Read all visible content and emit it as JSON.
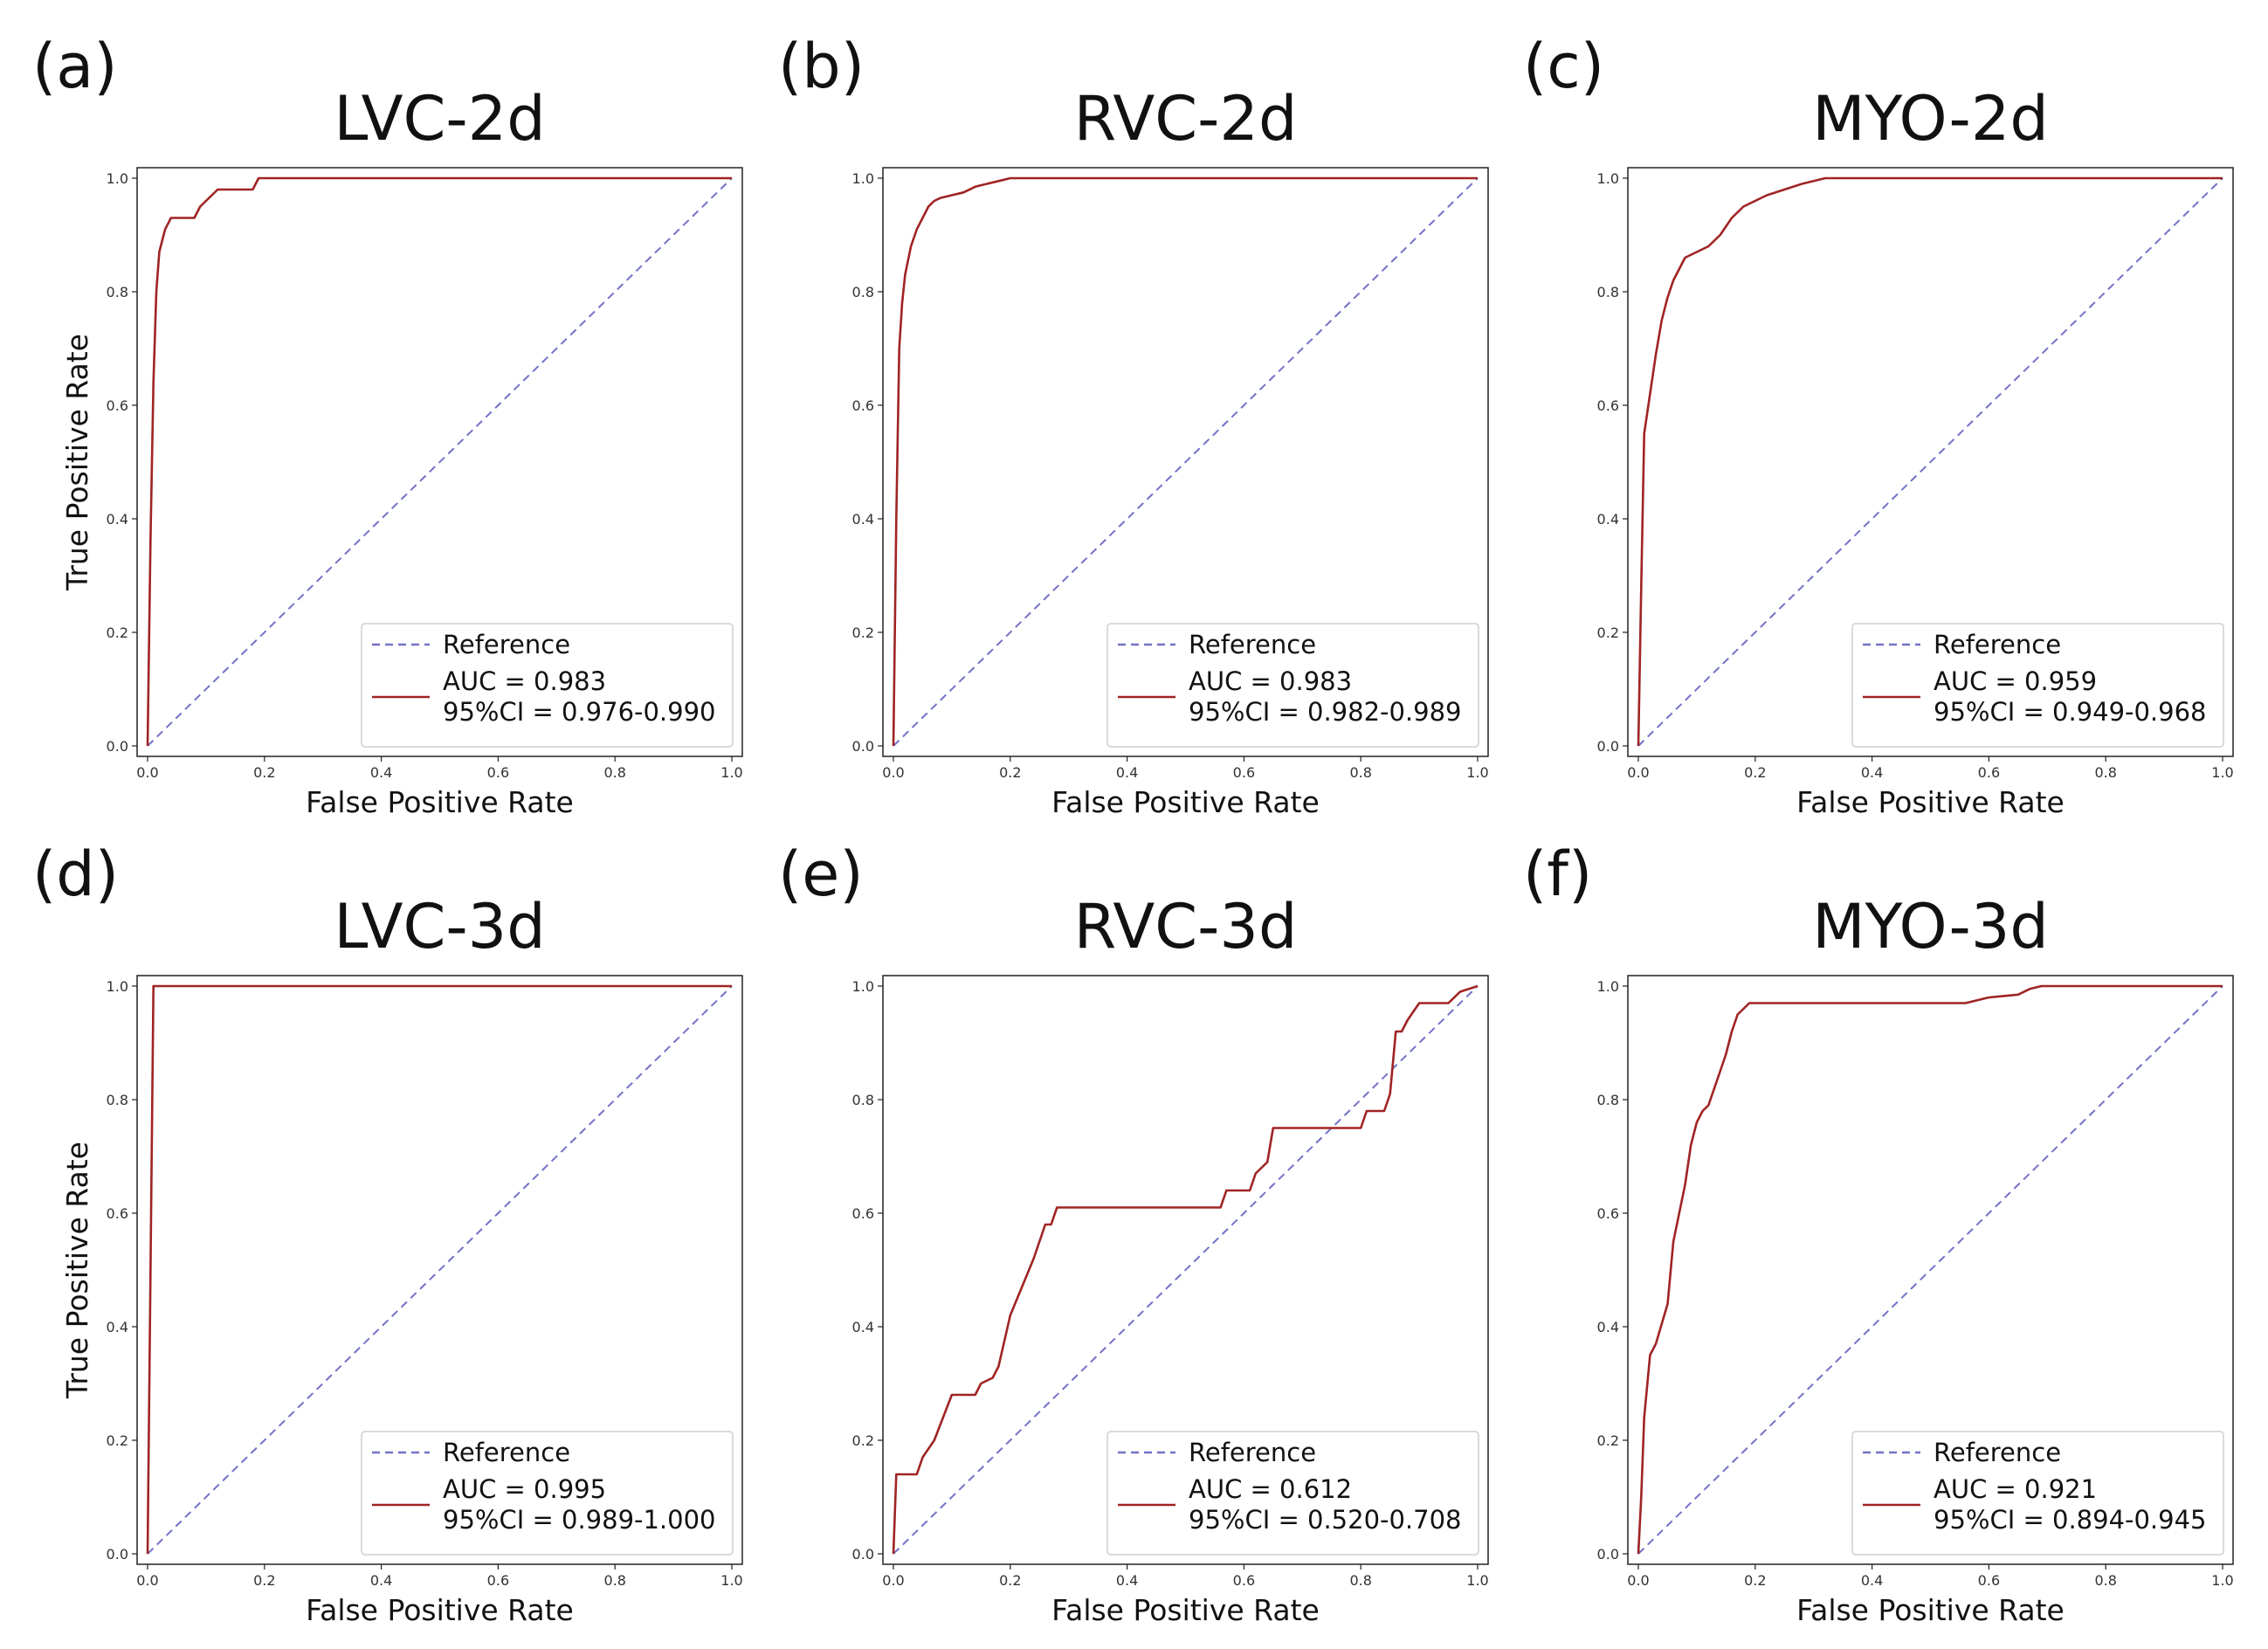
{
  "chart_data": [
    {
      "panel_label": "(a)",
      "type": "line",
      "title": "LVC-2d",
      "xlabel": "False Positive Rate",
      "ylabel": "True Positive Rate",
      "xlim": [
        0,
        1
      ],
      "ylim": [
        0,
        1
      ],
      "xticks": [
        "0.0",
        "0.2",
        "0.4",
        "0.6",
        "0.8",
        "1.0"
      ],
      "yticks": [
        "0.0",
        "0.2",
        "0.4",
        "0.6",
        "0.8",
        "1.0"
      ],
      "legend": {
        "location": "lower right",
        "reference_label": "Reference",
        "auc_label": "AUC = 0.983",
        "ci_label": "95%CI = 0.976-0.990"
      },
      "colors": {
        "roc": "#a02424",
        "reference": "#7272c8"
      },
      "series": [
        {
          "name": "Reference",
          "style": "dashed",
          "x": [
            0,
            1
          ],
          "y": [
            0,
            1
          ]
        },
        {
          "name": "ROC",
          "style": "solid",
          "x": [
            0,
            0.005,
            0.01,
            0.015,
            0.02,
            0.03,
            0.04,
            0.06,
            0.08,
            0.09,
            0.1,
            0.12,
            0.13,
            0.18,
            0.19,
            1.0
          ],
          "y": [
            0,
            0.36,
            0.64,
            0.8,
            0.87,
            0.91,
            0.93,
            0.93,
            0.93,
            0.95,
            0.96,
            0.98,
            0.98,
            0.98,
            1.0,
            1.0
          ]
        }
      ]
    },
    {
      "panel_label": "(b)",
      "type": "line",
      "title": "RVC-2d",
      "xlabel": "False Positive Rate",
      "ylabel": "",
      "xlim": [
        0,
        1
      ],
      "ylim": [
        0,
        1
      ],
      "xticks": [
        "0.0",
        "0.2",
        "0.4",
        "0.6",
        "0.8",
        "1.0"
      ],
      "yticks": [
        "0.0",
        "0.2",
        "0.4",
        "0.6",
        "0.8",
        "1.0"
      ],
      "legend": {
        "location": "lower right",
        "reference_label": "Reference",
        "auc_label": "AUC = 0.983",
        "ci_label": "95%CI = 0.982-0.989"
      },
      "colors": {
        "roc": "#a02424",
        "reference": "#7272c8"
      },
      "series": [
        {
          "name": "Reference",
          "style": "dashed",
          "x": [
            0,
            1
          ],
          "y": [
            0,
            1
          ]
        },
        {
          "name": "ROC",
          "style": "solid",
          "x": [
            0,
            0.005,
            0.01,
            0.015,
            0.02,
            0.03,
            0.04,
            0.05,
            0.06,
            0.07,
            0.08,
            0.1,
            0.12,
            0.14,
            0.16,
            0.18,
            0.2,
            1.0
          ],
          "y": [
            0,
            0.4,
            0.7,
            0.78,
            0.83,
            0.88,
            0.91,
            0.93,
            0.95,
            0.96,
            0.965,
            0.97,
            0.975,
            0.985,
            0.99,
            0.995,
            1.0,
            1.0
          ]
        }
      ]
    },
    {
      "panel_label": "(c)",
      "type": "line",
      "title": "MYO-2d",
      "xlabel": "False Positive Rate",
      "ylabel": "",
      "xlim": [
        0,
        1
      ],
      "ylim": [
        0,
        1
      ],
      "xticks": [
        "0.0",
        "0.2",
        "0.4",
        "0.6",
        "0.8",
        "1.0"
      ],
      "yticks": [
        "0.0",
        "0.2",
        "0.4",
        "0.6",
        "0.8",
        "1.0"
      ],
      "legend": {
        "location": "lower right",
        "reference_label": "Reference",
        "auc_label": "AUC = 0.959",
        "ci_label": "95%CI = 0.949-0.968"
      },
      "colors": {
        "roc": "#a02424",
        "reference": "#7272c8"
      },
      "series": [
        {
          "name": "Reference",
          "style": "dashed",
          "x": [
            0,
            1
          ],
          "y": [
            0,
            1
          ]
        },
        {
          "name": "ROC",
          "style": "solid",
          "x": [
            0,
            0.005,
            0.01,
            0.02,
            0.03,
            0.04,
            0.05,
            0.06,
            0.07,
            0.08,
            0.1,
            0.12,
            0.14,
            0.16,
            0.18,
            0.2,
            0.22,
            0.25,
            0.28,
            0.32,
            1.0
          ],
          "y": [
            0,
            0.28,
            0.55,
            0.62,
            0.69,
            0.75,
            0.79,
            0.82,
            0.84,
            0.86,
            0.87,
            0.88,
            0.9,
            0.93,
            0.95,
            0.96,
            0.97,
            0.98,
            0.99,
            1.0,
            1.0
          ]
        }
      ]
    },
    {
      "panel_label": "(d)",
      "type": "line",
      "title": "LVC-3d",
      "xlabel": "False Positive Rate",
      "ylabel": "True Positive Rate",
      "xlim": [
        0,
        1
      ],
      "ylim": [
        0,
        1
      ],
      "xticks": [
        "0.0",
        "0.2",
        "0.4",
        "0.6",
        "0.8",
        "1.0"
      ],
      "yticks": [
        "0.0",
        "0.2",
        "0.4",
        "0.6",
        "0.8",
        "1.0"
      ],
      "legend": {
        "location": "lower right",
        "reference_label": "Reference",
        "auc_label": "AUC = 0.995",
        "ci_label": "95%CI = 0.989-1.000"
      },
      "colors": {
        "roc": "#a02424",
        "reference": "#7272c8"
      },
      "series": [
        {
          "name": "Reference",
          "style": "dashed",
          "x": [
            0,
            1
          ],
          "y": [
            0,
            1
          ]
        },
        {
          "name": "ROC",
          "style": "solid",
          "x": [
            0,
            0.01,
            0.015,
            1.0
          ],
          "y": [
            0,
            1.0,
            1.0,
            1.0
          ]
        }
      ]
    },
    {
      "panel_label": "(e)",
      "type": "line",
      "title": "RVC-3d",
      "xlabel": "False Positive Rate",
      "ylabel": "",
      "xlim": [
        0,
        1
      ],
      "ylim": [
        0,
        1
      ],
      "xticks": [
        "0.0",
        "0.2",
        "0.4",
        "0.6",
        "0.8",
        "1.0"
      ],
      "yticks": [
        "0.0",
        "0.2",
        "0.4",
        "0.6",
        "0.8",
        "1.0"
      ],
      "legend": {
        "location": "lower right",
        "reference_label": "Reference",
        "auc_label": "AUC = 0.612",
        "ci_label": "95%CI = 0.520-0.708"
      },
      "colors": {
        "roc": "#a02424",
        "reference": "#7272c8"
      },
      "series": [
        {
          "name": "Reference",
          "style": "dashed",
          "x": [
            0,
            1
          ],
          "y": [
            0,
            1
          ]
        },
        {
          "name": "ROC",
          "style": "solid",
          "x": [
            0,
            0.005,
            0.04,
            0.05,
            0.07,
            0.1,
            0.14,
            0.15,
            0.17,
            0.18,
            0.2,
            0.22,
            0.24,
            0.26,
            0.27,
            0.28,
            0.3,
            0.56,
            0.57,
            0.61,
            0.62,
            0.64,
            0.65,
            0.8,
            0.81,
            0.84,
            0.85,
            0.86,
            0.87,
            0.88,
            0.9,
            0.95,
            0.97,
            1.0
          ],
          "y": [
            0,
            0.14,
            0.14,
            0.17,
            0.2,
            0.28,
            0.28,
            0.3,
            0.31,
            0.33,
            0.42,
            0.47,
            0.52,
            0.58,
            0.58,
            0.61,
            0.61,
            0.61,
            0.64,
            0.64,
            0.67,
            0.69,
            0.75,
            0.75,
            0.78,
            0.78,
            0.81,
            0.92,
            0.92,
            0.94,
            0.97,
            0.97,
            0.99,
            1.0
          ]
        }
      ]
    },
    {
      "panel_label": "(f)",
      "type": "line",
      "title": "MYO-3d",
      "xlabel": "False Positive Rate",
      "ylabel": "",
      "xlim": [
        0,
        1
      ],
      "ylim": [
        0,
        1
      ],
      "xticks": [
        "0.0",
        "0.2",
        "0.4",
        "0.6",
        "0.8",
        "1.0"
      ],
      "yticks": [
        "0.0",
        "0.2",
        "0.4",
        "0.6",
        "0.8",
        "1.0"
      ],
      "legend": {
        "location": "lower right",
        "reference_label": "Reference",
        "auc_label": "AUC = 0.921",
        "ci_label": "95%CI = 0.894-0.945"
      },
      "colors": {
        "roc": "#a02424",
        "reference": "#7272c8"
      },
      "series": [
        {
          "name": "Reference",
          "style": "dashed",
          "x": [
            0,
            1
          ],
          "y": [
            0,
            1
          ]
        },
        {
          "name": "ROC",
          "style": "solid",
          "x": [
            0,
            0.005,
            0.01,
            0.02,
            0.03,
            0.05,
            0.06,
            0.07,
            0.08,
            0.09,
            0.1,
            0.11,
            0.12,
            0.13,
            0.14,
            0.15,
            0.16,
            0.17,
            0.18,
            0.19,
            0.2,
            0.56,
            0.6,
            0.65,
            0.67,
            0.69,
            1.0
          ],
          "y": [
            0,
            0.1,
            0.24,
            0.35,
            0.37,
            0.44,
            0.55,
            0.6,
            0.65,
            0.72,
            0.76,
            0.78,
            0.79,
            0.82,
            0.85,
            0.88,
            0.92,
            0.95,
            0.96,
            0.97,
            0.97,
            0.97,
            0.98,
            0.985,
            0.995,
            1.0,
            1.0
          ]
        }
      ]
    }
  ]
}
